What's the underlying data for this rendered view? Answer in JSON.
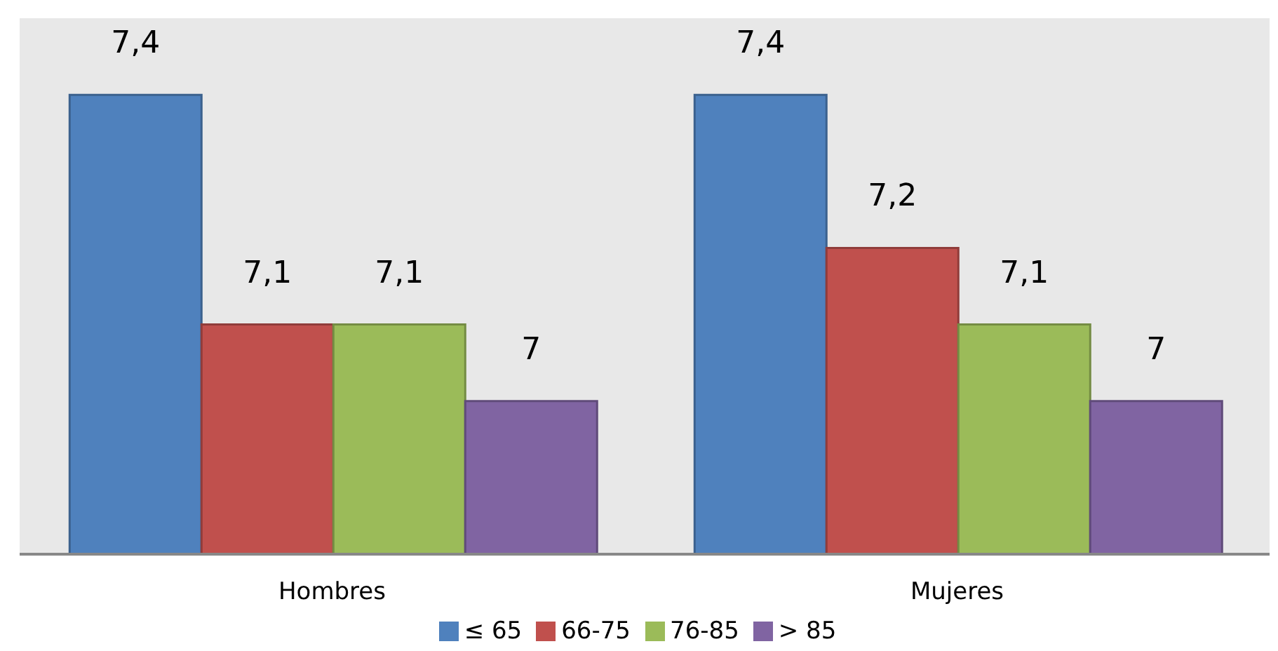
{
  "chart_data": {
    "type": "bar",
    "categories": [
      "Hombres",
      "Mujeres"
    ],
    "series": [
      {
        "name": "≤ 65",
        "color": "#4f81bd",
        "values": [
          7.4,
          7.4
        ],
        "value_labels": [
          "7,4",
          "7,4"
        ]
      },
      {
        "name": "66-75",
        "color": "#c0504d",
        "values": [
          7.1,
          7.2
        ],
        "value_labels": [
          "7,1",
          "7,2"
        ]
      },
      {
        "name": "76-85",
        "color": "#9bbb59",
        "values": [
          7.1,
          7.1
        ],
        "value_labels": [
          "7,1",
          "7,1"
        ]
      },
      {
        "name": "> 85",
        "color": "#8064a2",
        "values": [
          7,
          7
        ],
        "value_labels": [
          "7",
          "7"
        ]
      }
    ],
    "ylim": [
      6.8,
      7.5
    ],
    "tick_labels": "x",
    "grid": false,
    "legend": "bottom"
  }
}
